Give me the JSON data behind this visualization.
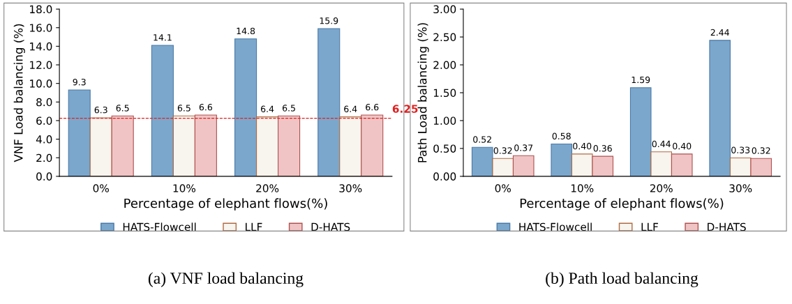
{
  "chart_data": [
    {
      "type": "bar",
      "xlabel": "Percentage of elephant flows(%)",
      "ylabel": "VNF Load balancing (%)",
      "categories": [
        "0%",
        "10%",
        "20%",
        "30%"
      ],
      "series": [
        {
          "name": "HATS-Flowcell",
          "color": "#7ba7cc",
          "values": [
            9.3,
            14.1,
            14.8,
            15.9
          ]
        },
        {
          "name": "LLF",
          "color": "#f8f4ee",
          "values": [
            6.3,
            6.5,
            6.4,
            6.4
          ]
        },
        {
          "name": "D-HATS",
          "color": "#f0c4c4",
          "values": [
            6.5,
            6.6,
            6.5,
            6.6
          ]
        }
      ],
      "ylim": [
        0,
        18
      ],
      "yticks": [
        {
          "value": 0,
          "label": "0.0"
        },
        {
          "value": 2,
          "label": "2.0"
        },
        {
          "value": 4,
          "label": "4.0"
        },
        {
          "value": 6,
          "label": "6.0"
        },
        {
          "value": 8,
          "label": "8.0"
        },
        {
          "value": 10,
          "label": "10.0"
        },
        {
          "value": 12,
          "label": "12.0"
        },
        {
          "value": 14,
          "label": "14.0"
        },
        {
          "value": 16,
          "label": "16.0"
        },
        {
          "value": 18,
          "label": "18.0"
        }
      ],
      "ref_lines": [
        {
          "axis": "y",
          "value": 6.25,
          "label": "6.25",
          "color": "#e02020",
          "line_style": "dashed"
        }
      ],
      "data_labels": true,
      "legend": "bottom",
      "annotations": [
        "(a) VNF load balancing"
      ]
    },
    {
      "type": "bar",
      "xlabel": "Percentage of elephant flows(%)",
      "ylabel": "Path Load balancing (%)",
      "categories": [
        "0%",
        "10%",
        "20%",
        "30%"
      ],
      "series": [
        {
          "name": "HATS-Flowcell",
          "color": "#7ba7cc",
          "values": [
            0.52,
            0.58,
            1.59,
            2.44
          ],
          "value_labels": [
            "0.52",
            "0.58",
            "1.59",
            "2.44"
          ]
        },
        {
          "name": "LLF",
          "color": "#f8f4ee",
          "values": [
            0.32,
            0.4,
            0.44,
            0.33
          ],
          "value_labels": [
            "0.32",
            "0.40",
            "0.44",
            "0.33"
          ]
        },
        {
          "name": "D-HATS",
          "color": "#f0c4c4",
          "values": [
            0.37,
            0.36,
            0.4,
            0.32
          ],
          "value_labels": [
            "0.37",
            "0.36",
            "0.40",
            "0.32"
          ]
        }
      ],
      "ylim": [
        0,
        3
      ],
      "yticks": [
        {
          "value": 0,
          "label": "0.00"
        },
        {
          "value": 0.5,
          "label": "0.50"
        },
        {
          "value": 1,
          "label": "1.00"
        },
        {
          "value": 1.5,
          "label": "1.50"
        },
        {
          "value": 2,
          "label": "2.00"
        },
        {
          "value": 2.5,
          "label": "2.50"
        },
        {
          "value": 3,
          "label": "3.00"
        }
      ],
      "legend": "bottom",
      "annotations": [
        "(b) Path load balancing"
      ]
    }
  ]
}
